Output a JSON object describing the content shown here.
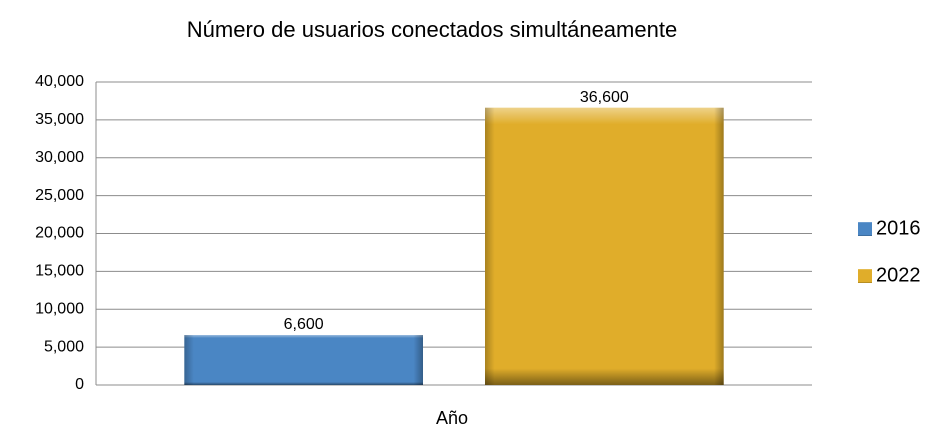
{
  "chart_data": {
    "type": "bar",
    "title": "Número de usuarios conectados simultáneamente",
    "x_label": "Año",
    "categories": [
      null
    ],
    "series": [
      {
        "name": "2016",
        "color": "#4a86c4",
        "values": [
          6600
        ],
        "value_labels": [
          "6,600"
        ]
      },
      {
        "name": "2022",
        "color": "#e0ad2a",
        "values": [
          36600
        ],
        "value_labels": [
          "36,600"
        ]
      }
    ],
    "ylim": [
      0,
      40000
    ],
    "yticks": [
      0,
      {
        "value": 5000,
        "label": "5,000"
      },
      {
        "value": 10000,
        "label": "10,000"
      },
      {
        "value": 15000,
        "label": "15,000"
      },
      {
        "value": 20000,
        "label": "20,000"
      },
      {
        "value": 25000,
        "label": "25,000"
      },
      {
        "value": 30000,
        "label": "30,000"
      },
      {
        "value": 35000,
        "label": "35,000"
      },
      {
        "value": 40000,
        "label": "40,000"
      }
    ],
    "grid": true,
    "legend": "right"
  }
}
